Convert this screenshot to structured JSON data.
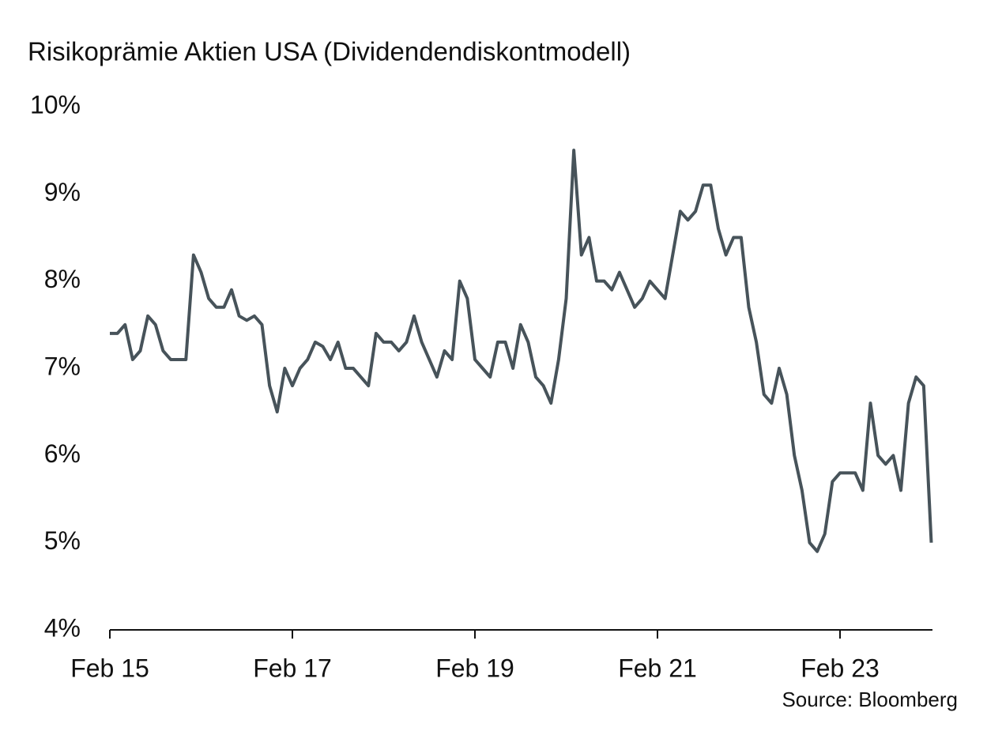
{
  "chart_data": {
    "type": "line",
    "title": "Risikoprämie Aktien USA (Dividendendiskontmodell)",
    "source": "Source: Bloomberg",
    "color": "#47535a",
    "x": [
      "Feb 15",
      "Mar 15",
      "Apr 15",
      "May 15",
      "Jun 15",
      "Jul 15",
      "Aug 15",
      "Sep 15",
      "Oct 15",
      "Nov 15",
      "Dec 15",
      "Jan 16",
      "Feb 16",
      "Mar 16",
      "Apr 16",
      "May 16",
      "Jun 16",
      "Jul 16",
      "Aug 16",
      "Sep 16",
      "Oct 16",
      "Nov 16",
      "Dec 16",
      "Jan 17",
      "Feb 17",
      "Mar 17",
      "Apr 17",
      "May 17",
      "Jun 17",
      "Jul 17",
      "Aug 17",
      "Sep 17",
      "Oct 17",
      "Nov 17",
      "Dec 17",
      "Jan 18",
      "Feb 18",
      "Mar 18",
      "Apr 18",
      "May 18",
      "Jun 18",
      "Jul 18",
      "Aug 18",
      "Sep 18",
      "Oct 18",
      "Nov 18",
      "Dec 18",
      "Jan 19",
      "Feb 19",
      "Mar 19",
      "Apr 19",
      "May 19",
      "Jun 19",
      "Jul 19",
      "Aug 19",
      "Sep 19",
      "Oct 19",
      "Nov 19",
      "Dec 19",
      "Jan 20",
      "Feb 20",
      "Mar 20",
      "Apr 20",
      "May 20",
      "Jun 20",
      "Jul 20",
      "Aug 20",
      "Sep 20",
      "Oct 20",
      "Nov 20",
      "Dec 20",
      "Jan 21",
      "Feb 21",
      "Mar 21",
      "Apr 21",
      "May 21",
      "Jun 21",
      "Jul 21",
      "Aug 21",
      "Sep 21",
      "Oct 21",
      "Nov 21",
      "Dec 21",
      "Jan 22",
      "Feb 22",
      "Mar 22",
      "Apr 22",
      "May 22",
      "Jun 22",
      "Jul 22",
      "Aug 22",
      "Sep 22",
      "Oct 22",
      "Nov 22",
      "Dec 22",
      "Jan 23",
      "Feb 23",
      "Mar 23",
      "Apr 23",
      "May 23",
      "Jun 23",
      "Jul 23",
      "Aug 23",
      "Sep 23",
      "Oct 23",
      "Nov 23",
      "Dec 23",
      "Jan 24",
      "Feb 24"
    ],
    "values": [
      7.4,
      7.4,
      7.5,
      7.1,
      7.2,
      7.6,
      7.5,
      7.2,
      7.1,
      7.1,
      7.1,
      8.3,
      8.1,
      7.8,
      7.7,
      7.7,
      7.9,
      7.6,
      7.55,
      7.6,
      7.5,
      6.8,
      6.5,
      7.0,
      6.8,
      7.0,
      7.1,
      7.3,
      7.25,
      7.1,
      7.3,
      7.0,
      7.0,
      6.9,
      6.8,
      7.4,
      7.3,
      7.3,
      7.2,
      7.3,
      7.6,
      7.3,
      7.1,
      6.9,
      7.2,
      7.1,
      8.0,
      7.8,
      7.1,
      7.0,
      6.9,
      7.3,
      7.3,
      7.0,
      7.5,
      7.3,
      6.9,
      6.8,
      6.6,
      7.1,
      7.8,
      9.5,
      8.3,
      8.5,
      8.0,
      8.0,
      7.9,
      8.1,
      7.9,
      7.7,
      7.8,
      8.0,
      7.9,
      7.8,
      8.3,
      8.8,
      8.7,
      8.8,
      9.1,
      9.1,
      8.6,
      8.3,
      8.5,
      8.5,
      7.7,
      7.3,
      6.7,
      6.6,
      7.0,
      6.7,
      6.0,
      5.6,
      5.0,
      4.9,
      5.1,
      5.7,
      5.8,
      5.8,
      5.8,
      5.6,
      6.6,
      6.0,
      5.9,
      6.0,
      5.6,
      6.6,
      6.9,
      6.8,
      5.0
    ],
    "ylim": [
      4,
      10
    ],
    "yticks": [
      {
        "value": 4,
        "label": "4%"
      },
      {
        "value": 5,
        "label": "5%"
      },
      {
        "value": 6,
        "label": "6%"
      },
      {
        "value": 7,
        "label": "7%"
      },
      {
        "value": 8,
        "label": "8%"
      },
      {
        "value": 9,
        "label": "9%"
      },
      {
        "value": 10,
        "label": "10%"
      }
    ],
    "xticks": [
      "Feb 15",
      "Feb 17",
      "Feb 19",
      "Feb 21",
      "Feb 23"
    ],
    "grid": false
  }
}
